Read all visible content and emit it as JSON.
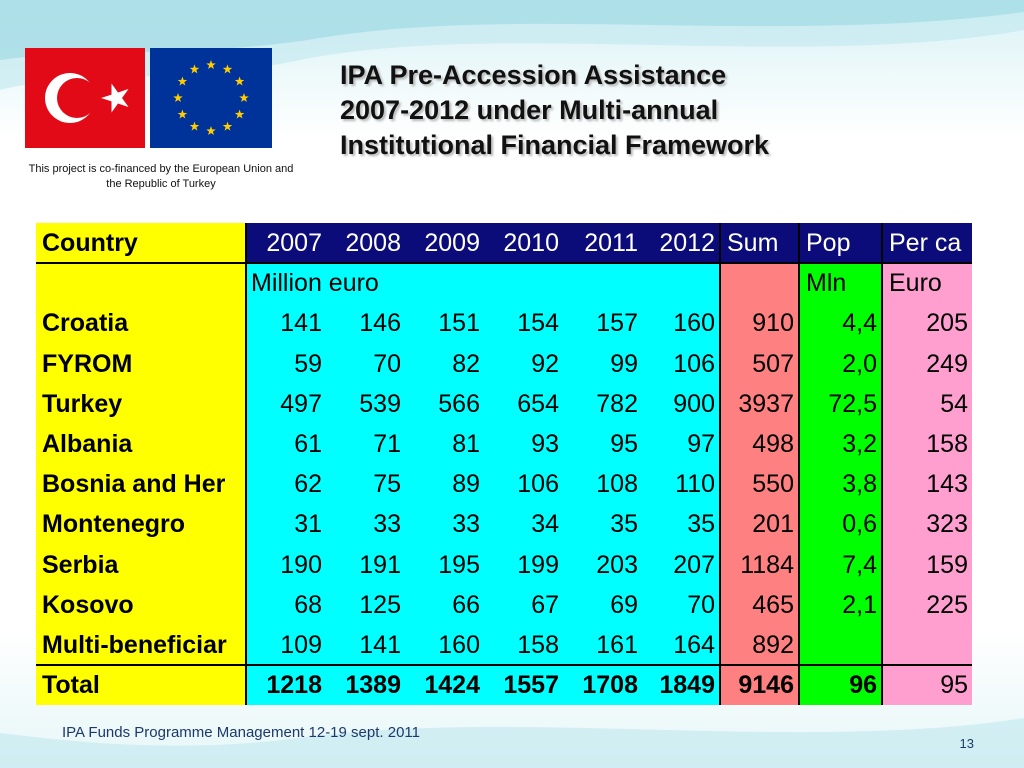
{
  "cofinanced_note": "This project is co-financed by the European Union and the Republic of Turkey",
  "title_lines": [
    "IPA Pre-Accession Assistance",
    "2007-2012 under Multi-annual",
    "Institutional Financial Framework"
  ],
  "colors": {
    "country": "#ffff00",
    "years": "#00ffff",
    "sum": "#ff8080",
    "pop": "#00ff00",
    "percap": "#ff9fd0",
    "header": "#0b0b7a"
  },
  "table": {
    "headers": [
      "Country",
      "2007",
      "2008",
      "2009",
      "2010",
      "2011",
      "2012",
      "Sum",
      "Pop",
      "Per ca"
    ],
    "unit_row": {
      "years": "Million euro",
      "pop": "Mln",
      "percap": "Euro"
    },
    "rows": [
      {
        "country": "Croatia",
        "values": [
          "141",
          "146",
          "151",
          "154",
          "157",
          "160"
        ],
        "sum": "910",
        "pop": "4,4",
        "percap": "205"
      },
      {
        "country": "FYROM",
        "values": [
          "59",
          "70",
          "82",
          "92",
          "99",
          "106"
        ],
        "sum": "507",
        "pop": "2,0",
        "percap": "249"
      },
      {
        "country": "Turkey",
        "values": [
          "497",
          "539",
          "566",
          "654",
          "782",
          "900"
        ],
        "sum": "3937",
        "pop": "72,5",
        "percap": "54"
      },
      {
        "country": "Albania",
        "values": [
          "61",
          "71",
          "81",
          "93",
          "95",
          "97"
        ],
        "sum": "498",
        "pop": "3,2",
        "percap": "158"
      },
      {
        "country": "Bosnia and Her",
        "values": [
          "62",
          "75",
          "89",
          "106",
          "108",
          "110"
        ],
        "sum": "550",
        "pop": "3,8",
        "percap": "143"
      },
      {
        "country": "Montenegro",
        "values": [
          "31",
          "33",
          "33",
          "34",
          "35",
          "35"
        ],
        "sum": "201",
        "pop": "0,6",
        "percap": "323"
      },
      {
        "country": "Serbia",
        "values": [
          "190",
          "191",
          "195",
          "199",
          "203",
          "207"
        ],
        "sum": "1184",
        "pop": "7,4",
        "percap": "159"
      },
      {
        "country": "Kosovo",
        "values": [
          "68",
          "125",
          "66",
          "67",
          "69",
          "70"
        ],
        "sum": "465",
        "pop": "2,1",
        "percap": "225"
      },
      {
        "country": "Multi-beneficiar",
        "values": [
          "109",
          "141",
          "160",
          "158",
          "161",
          "164"
        ],
        "sum": "892",
        "pop": "",
        "percap": ""
      }
    ],
    "total": {
      "country": "Total",
      "values": [
        "1218",
        "1389",
        "1424",
        "1557",
        "1708",
        "1849"
      ],
      "sum": "9146",
      "pop": "96",
      "percap": "95"
    }
  },
  "footer": "IPA Funds Programme Management 12-19 sept. 2011",
  "page_number": "13"
}
